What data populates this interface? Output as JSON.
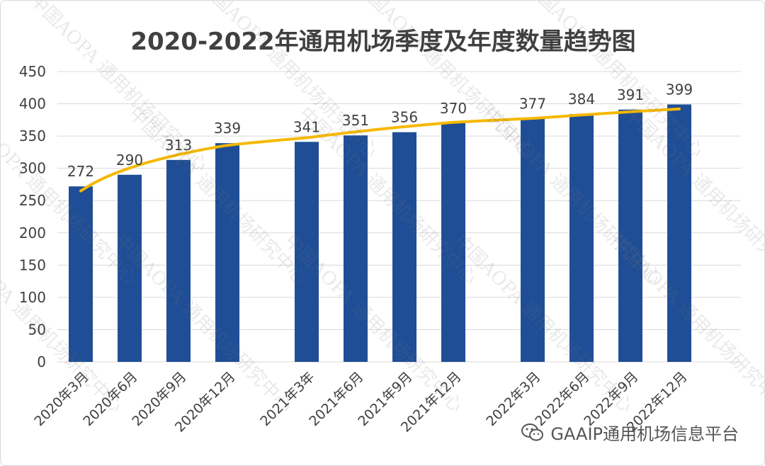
{
  "chart_data": {
    "type": "bar",
    "title": "2020-2022年通用机场季度及年度数量趋势图",
    "categories": [
      "2020年3月",
      "2020年6月",
      "2020年9月",
      "2020年12月",
      "2021年3年",
      "2021年6月",
      "2021年9月",
      "2021年12月",
      "2022年3月",
      "2022年6月",
      "2022年9月",
      "2022年12月"
    ],
    "groups": [
      [
        0,
        1,
        2,
        3
      ],
      [
        4,
        5,
        6,
        7
      ],
      [
        8,
        9,
        10,
        11
      ]
    ],
    "values": [
      272,
      290,
      313,
      339,
      341,
      351,
      356,
      370,
      377,
      384,
      391,
      399
    ],
    "data_labels": [
      "272",
      "290",
      "313",
      "339",
      "341",
      "351",
      "356",
      "370",
      "377",
      "384",
      "391",
      "399"
    ],
    "ylim": [
      0,
      450
    ],
    "yticks": [
      0,
      50,
      100,
      150,
      200,
      250,
      300,
      350,
      400,
      450
    ],
    "ytick_labels": [
      "0",
      "50",
      "100",
      "150",
      "200",
      "250",
      "300",
      "350",
      "400",
      "450"
    ],
    "xlabel": "",
    "ylabel": "",
    "grid": true,
    "legend": "none",
    "bar_color": "#1f4e96",
    "trendline": {
      "type": "logarithmic",
      "color": "#f5b800",
      "start_value": 265,
      "end_value": 392
    }
  },
  "watermark": {
    "text": "中国AOPA 通用机场研究中心"
  },
  "footer": {
    "icon": "wechat-icon",
    "text": "GAAIP通用机场信息平台"
  }
}
